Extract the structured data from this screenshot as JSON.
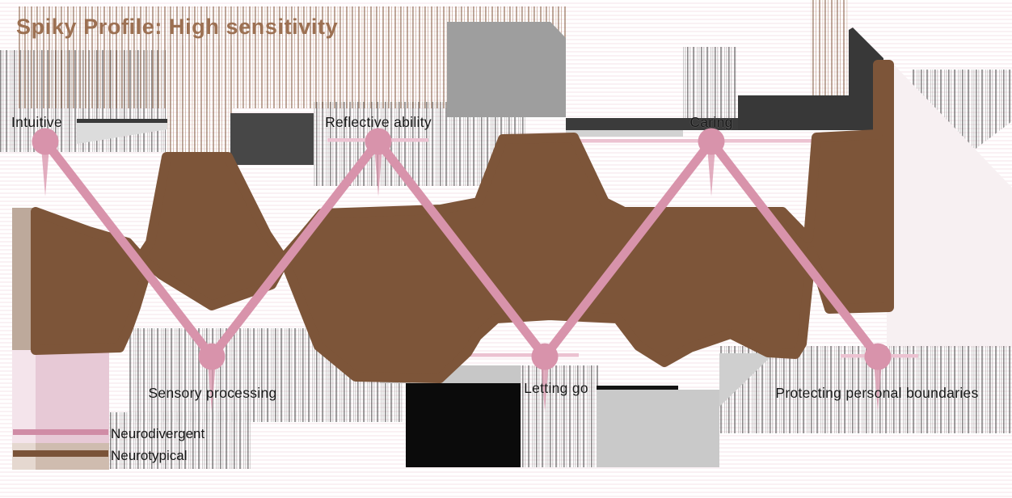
{
  "title": "Spiky Profile: High sensitivity",
  "chart_data": {
    "type": "line",
    "title": "Spiky Profile: High sensitivity",
    "categories": [
      "Intuitive",
      "Sensory processing",
      "Reflective ability",
      "Letting go",
      "Caring",
      "Protecting personal boundaries"
    ],
    "series": [
      {
        "name": "Neurodivergent",
        "type": "line+markers",
        "values": [
          9,
          1.5,
          9,
          1.5,
          9,
          1.5
        ],
        "color": "#d893ab"
      },
      {
        "name": "Neurotypical",
        "type": "band",
        "values": [
          5.2,
          5.0,
          5.2,
          5.0,
          5.2,
          5.0
        ],
        "band_high_estimate": [
          6.6,
          8.6,
          6.6,
          9.1,
          6.6,
          9.8
        ],
        "band_low_estimate": [
          4.1,
          5.0,
          4.2,
          4.9,
          4.2,
          5.2
        ],
        "color": "#7d5539"
      }
    ],
    "xlabel": "",
    "ylabel": "",
    "axes_visible": false,
    "grid": false,
    "legend_position": "bottom-left",
    "value_scale_note": "no numeric axis shown; values estimated on 0-10 scale (peaks high, dips low)"
  },
  "legend": {
    "items": [
      {
        "label": "Neurodivergent",
        "color": "#d08ca6"
      },
      {
        "label": "Neurotypical",
        "color": "#7a5338"
      }
    ]
  },
  "colors": {
    "pink_line": "#d893ab",
    "pink_whisker": "#ecc2d1",
    "brown_band": "#7d5539",
    "title_text": "#9c7052",
    "label_text": "#161616",
    "pale_pink_fill": "#e7c9d6",
    "taupe_fill": "#bda99b",
    "dark_grey": "#3a3a3a",
    "mid_grey": "#9e9e9e",
    "black_block": "#0b0b0b"
  }
}
